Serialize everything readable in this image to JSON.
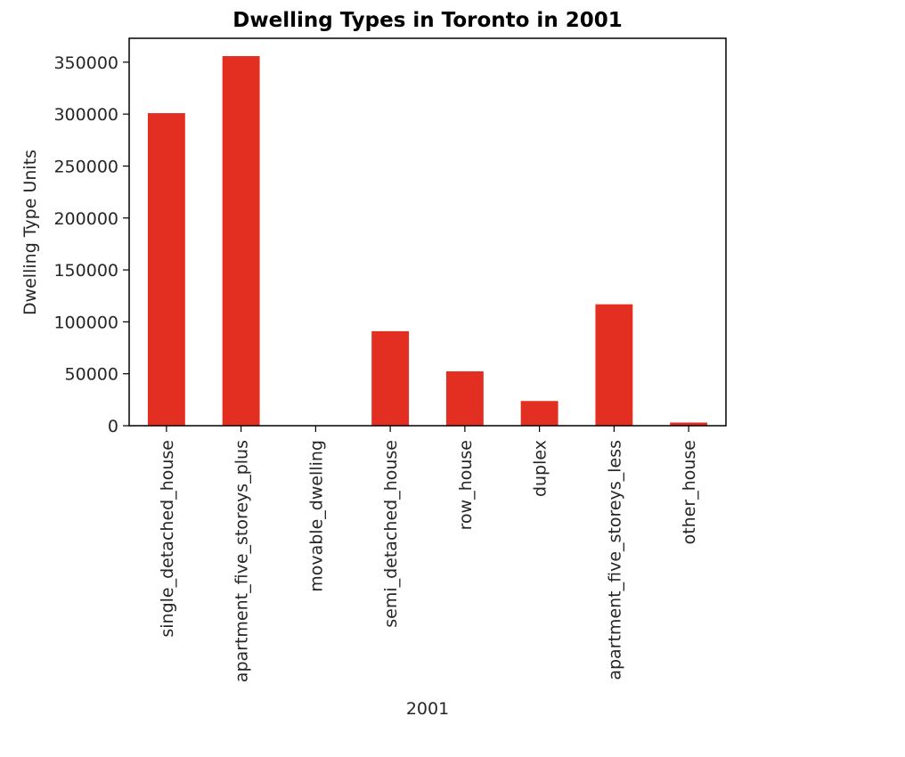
{
  "chart_data": {
    "type": "bar",
    "title": "Dwelling Types in Toronto in 2001",
    "xlabel": "2001",
    "ylabel": "Dwelling Type Units",
    "categories": [
      "single_detached_house",
      "apartment_five_storeys_plus",
      "movable_dwelling",
      "semi_detached_house",
      "row_house",
      "duplex",
      "apartment_five_storeys_less",
      "other_house"
    ],
    "values": [
      300930,
      355860,
      75,
      90995,
      52355,
      23785,
      116900,
      3040
    ],
    "ylim": [
      0,
      373000
    ],
    "yticks": [
      0,
      50000,
      100000,
      150000,
      200000,
      250000,
      300000,
      350000
    ],
    "ytick_labels": [
      "0",
      "50000",
      "100000",
      "150000",
      "200000",
      "250000",
      "300000",
      "350000"
    ],
    "bar_color": "#e32f22",
    "grid": false,
    "legend": "none"
  }
}
